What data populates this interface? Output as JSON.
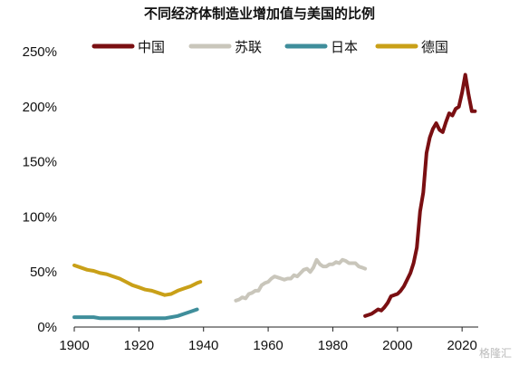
{
  "chart_data": {
    "type": "line",
    "title": "不同经济体制造业增加值与美国的比例",
    "xlim": [
      1900,
      2025
    ],
    "ylim": [
      0,
      250
    ],
    "x_ticks": [
      1900,
      1920,
      1940,
      1960,
      1980,
      2000,
      2020
    ],
    "y_ticks": [
      0,
      50,
      100,
      150,
      200,
      250
    ],
    "y_tick_labels": [
      "0%",
      "50%",
      "100%",
      "150%",
      "200%",
      "250%"
    ],
    "grid": false,
    "legend_position": "top",
    "series": [
      {
        "name": "中国",
        "color": "#7a0f12",
        "points": [
          [
            1990,
            10
          ],
          [
            1991,
            11
          ],
          [
            1992,
            12
          ],
          [
            1993,
            14
          ],
          [
            1994,
            16
          ],
          [
            1995,
            15
          ],
          [
            1996,
            18
          ],
          [
            1997,
            22
          ],
          [
            1998,
            28
          ],
          [
            1999,
            29
          ],
          [
            2000,
            30
          ],
          [
            2001,
            33
          ],
          [
            2002,
            37
          ],
          [
            2003,
            43
          ],
          [
            2004,
            49
          ],
          [
            2005,
            58
          ],
          [
            2006,
            72
          ],
          [
            2007,
            105
          ],
          [
            2008,
            122
          ],
          [
            2009,
            158
          ],
          [
            2010,
            172
          ],
          [
            2011,
            180
          ],
          [
            2012,
            185
          ],
          [
            2013,
            179
          ],
          [
            2014,
            177
          ],
          [
            2015,
            186
          ],
          [
            2016,
            194
          ],
          [
            2017,
            192
          ],
          [
            2018,
            198
          ],
          [
            2019,
            200
          ],
          [
            2020,
            213
          ],
          [
            2021,
            229
          ],
          [
            2022,
            211
          ],
          [
            2023,
            196
          ],
          [
            2024,
            196
          ]
        ]
      },
      {
        "name": "苏联",
        "color": "#c9c6bb",
        "points": [
          [
            1950,
            24
          ],
          [
            1951,
            25
          ],
          [
            1952,
            27
          ],
          [
            1953,
            26
          ],
          [
            1954,
            30
          ],
          [
            1955,
            31
          ],
          [
            1956,
            33
          ],
          [
            1957,
            33
          ],
          [
            1958,
            38
          ],
          [
            1959,
            40
          ],
          [
            1960,
            41
          ],
          [
            1961,
            44
          ],
          [
            1962,
            46
          ],
          [
            1963,
            45
          ],
          [
            1964,
            44
          ],
          [
            1965,
            43
          ],
          [
            1966,
            44
          ],
          [
            1967,
            44
          ],
          [
            1968,
            47
          ],
          [
            1969,
            46
          ],
          [
            1970,
            49
          ],
          [
            1971,
            52
          ],
          [
            1972,
            53
          ],
          [
            1973,
            50
          ],
          [
            1974,
            54
          ],
          [
            1975,
            61
          ],
          [
            1976,
            57
          ],
          [
            1977,
            55
          ],
          [
            1978,
            55
          ],
          [
            1979,
            57
          ],
          [
            1980,
            57
          ],
          [
            1981,
            59
          ],
          [
            1982,
            58
          ],
          [
            1983,
            61
          ],
          [
            1984,
            60
          ],
          [
            1985,
            58
          ],
          [
            1986,
            58
          ],
          [
            1987,
            58
          ],
          [
            1988,
            55
          ],
          [
            1989,
            54
          ],
          [
            1990,
            53
          ]
        ]
      },
      {
        "name": "日本",
        "color": "#3f8e9b",
        "points": [
          [
            1900,
            9
          ],
          [
            1903,
            9
          ],
          [
            1906,
            9
          ],
          [
            1908,
            8
          ],
          [
            1910,
            8
          ],
          [
            1913,
            8
          ],
          [
            1915,
            8
          ],
          [
            1918,
            8
          ],
          [
            1920,
            8
          ],
          [
            1923,
            8
          ],
          [
            1926,
            8
          ],
          [
            1928,
            8
          ],
          [
            1930,
            9
          ],
          [
            1932,
            10
          ],
          [
            1934,
            12
          ],
          [
            1936,
            14
          ],
          [
            1938,
            16
          ]
        ]
      },
      {
        "name": "德国",
        "color": "#c9a018",
        "points": [
          [
            1900,
            56
          ],
          [
            1902,
            54
          ],
          [
            1904,
            52
          ],
          [
            1906,
            51
          ],
          [
            1908,
            49
          ],
          [
            1910,
            48
          ],
          [
            1912,
            46
          ],
          [
            1914,
            44
          ],
          [
            1916,
            41
          ],
          [
            1918,
            38
          ],
          [
            1920,
            36
          ],
          [
            1922,
            34
          ],
          [
            1924,
            33
          ],
          [
            1926,
            31
          ],
          [
            1928,
            29
          ],
          [
            1930,
            30
          ],
          [
            1932,
            33
          ],
          [
            1934,
            35
          ],
          [
            1936,
            37
          ],
          [
            1938,
            40
          ],
          [
            1939,
            41
          ]
        ]
      }
    ]
  },
  "watermark": "格隆汇"
}
